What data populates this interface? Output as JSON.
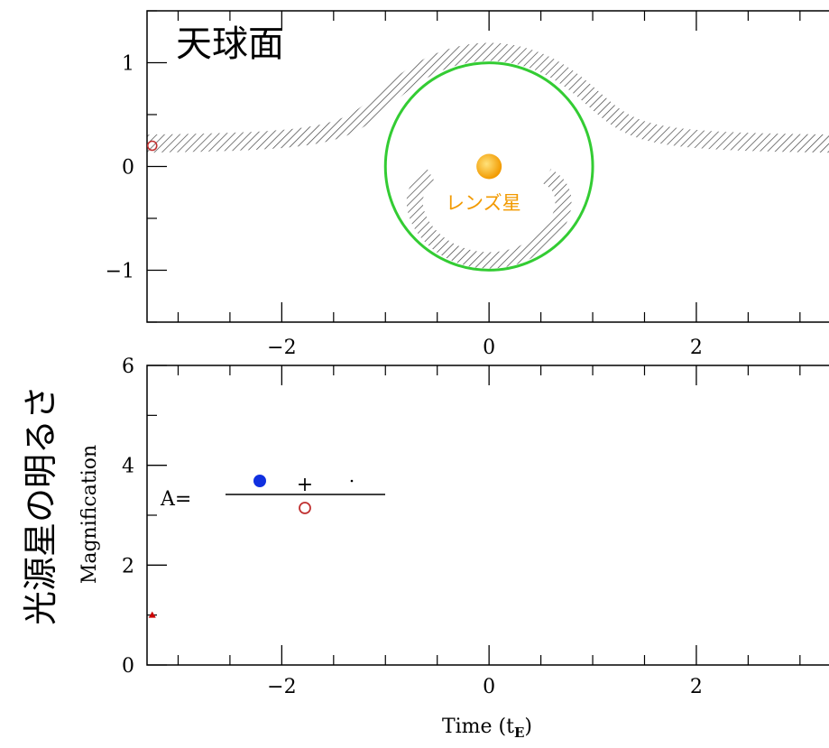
{
  "chart_data": [
    {
      "type": "sky",
      "title": "天球面",
      "annotation": "レンズ星",
      "xlim": [
        -3.3,
        3.28
      ],
      "ylim": [
        -1.5,
        1.5
      ],
      "xticks": [
        {
          "value": -2,
          "label": "−2"
        },
        0,
        2
      ],
      "minor_xticks": [
        -3,
        -2.5,
        -1.5,
        -1,
        -0.5,
        0.5,
        1,
        1.5,
        2.5,
        3
      ],
      "yticks": [
        {
          "value": -1,
          "label": "−1"
        },
        0,
        1
      ],
      "minor_yticks": [
        -1.5,
        -0.5,
        0.5,
        1.5
      ],
      "source": {
        "x": -3.25,
        "y": 0.2,
        "color": "#c03030"
      },
      "lens": {
        "x": 0,
        "y": 0,
        "color": "#f5a000"
      },
      "einstein_radius": 1,
      "ring_color": "#33cc33"
    },
    {
      "type": "scatter",
      "annotation": "光源星の明るさ",
      "ylabel": "Magnification",
      "xlabel": "Time (t",
      "xlabel_sub": "E",
      "xlabel_end": ")",
      "formula": {
        "lhs": "A=",
        "plus": "+"
      },
      "xlim": [
        -3.3,
        3.28
      ],
      "ylim": [
        0,
        6
      ],
      "xticks": [
        {
          "value": -2,
          "label": "−2"
        },
        0,
        2
      ],
      "minor_xticks": [
        -3,
        -2.5,
        -1.5,
        -1,
        -0.5,
        0.5,
        1,
        1.5,
        2.5,
        3
      ],
      "yticks": [
        0,
        2,
        4,
        6
      ],
      "minor_yticks": [
        1,
        3,
        5
      ],
      "x": [
        -3.25
      ],
      "values": [
        1.0
      ],
      "color": "#cc0000"
    }
  ]
}
